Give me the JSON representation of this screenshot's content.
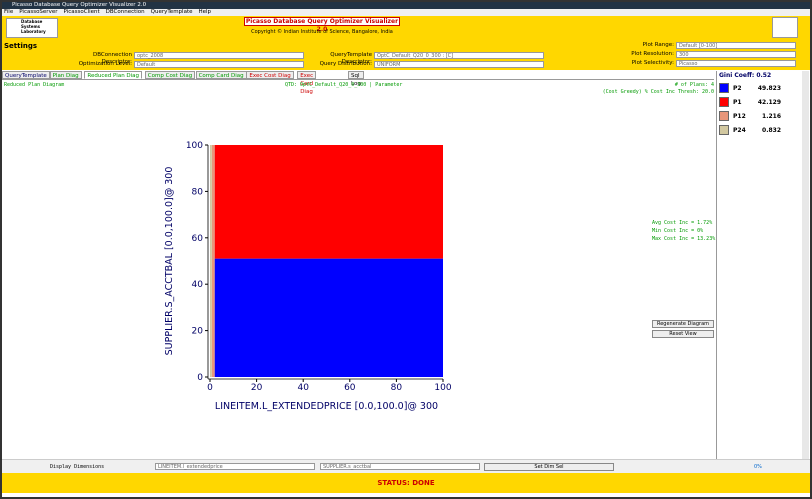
{
  "window": {
    "title": "Picasso Database Query Optimizer Visualizer 2.0"
  },
  "menu": [
    "File",
    "PicassoServer",
    "PicassoClient",
    "DBConnection",
    "QueryTemplate",
    "Help"
  ],
  "header": {
    "logo": [
      "Database",
      "Systems",
      "Laboratory"
    ],
    "title": "Picasso Database Query Optimizer Visualizer 2.0",
    "copyright": "Copyright © Indian Institute of Science, Bangalore, India"
  },
  "settings": {
    "title": "Settings",
    "fields": [
      {
        "label": "DBConnection Descriptor:",
        "value": "optc_2008"
      },
      {
        "label": "Optimization Level:",
        "value": "Default"
      },
      {
        "label": "QueryTemplate Descriptor:",
        "value": "OptC_Default_Q20_0_300 : [C]"
      },
      {
        "label": "Query Distribution:",
        "value": "UNIFORM"
      },
      {
        "label": "Plot Range:",
        "value": "Default [0-100]"
      },
      {
        "label": "Plot Resolution:",
        "value": "300"
      },
      {
        "label": "Plot Selectivity:",
        "value": "Picasso"
      }
    ]
  },
  "tabs": [
    "QueryTemplate",
    "Plan Diag",
    "Reduced Plan Diag",
    "Comp Cost Diag",
    "Comp Card Diag",
    "Exec Cost Diag",
    "Exec Card Diag",
    "Sql Log"
  ],
  "diagram": {
    "title": "Reduced Plan Diagram",
    "qtd": "QTD: OptC_Default_Q20_0_300 | Parameter",
    "plans_info": "# of Plans: 4",
    "thresh": "(Cost Greedy) % Cost Inc Thresh: 20.0",
    "stats": [
      "Avg Cost Inc = 1.72%",
      "Min Cost Inc = 0%",
      "Max Cost Inc = 13.23%"
    ],
    "buttons": [
      "Regenerate Diagram",
      "Reset View"
    ]
  },
  "legend": {
    "title": "Gini Coeff: 0.52",
    "plans": [
      {
        "name": "P2",
        "color": "#0000ff",
        "value": 49.823
      },
      {
        "name": "P1",
        "color": "#ff0000",
        "value": 42.129
      },
      {
        "name": "P12",
        "color": "#e8967a",
        "value": 1.216
      },
      {
        "name": "P24",
        "color": "#d2c8a0",
        "value": 0.832
      }
    ]
  },
  "plot": {
    "xlabel": "LINEITEM.L_EXTENDEDPRICE [0.0,100.0]@ 300",
    "ylabel": "SUPPLIER.S_ACCTBAL [0.0,100.0]@ 300",
    "xlim": [
      0,
      100
    ],
    "ylim": [
      0,
      100
    ],
    "xticks": [
      0,
      20,
      40,
      60,
      80,
      100
    ],
    "yticks": [
      0,
      20,
      40,
      60,
      80,
      100
    ],
    "regions": [
      {
        "plan": "P1",
        "x": [
          2,
          100
        ],
        "y": [
          51,
          100
        ]
      },
      {
        "plan": "P2",
        "x": [
          2,
          100
        ],
        "y": [
          0,
          51
        ]
      },
      {
        "plan": "P12",
        "x": [
          0.8,
          2
        ],
        "y": [
          0,
          100
        ]
      },
      {
        "plan": "P24",
        "x": [
          0,
          0.8
        ],
        "y": [
          0,
          100
        ]
      }
    ]
  },
  "bottom": {
    "label": "Display Dimensions",
    "dims": [
      "LINEITEM.l_extendedprice",
      "SUPPLIER.s_acctbal"
    ],
    "button": "Set Dim Sel",
    "zoom": "0%"
  },
  "status": "STATUS: DONE"
}
